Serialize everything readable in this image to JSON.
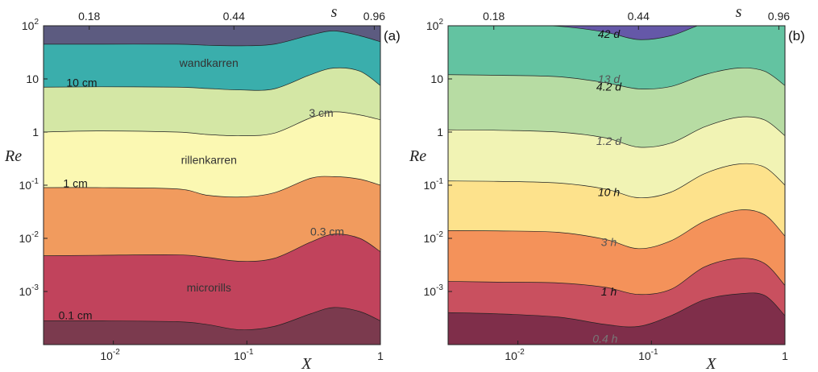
{
  "chart_data": [
    {
      "type": "area",
      "panel_label": "(a)",
      "xlabel": "X",
      "ylabel": "Re",
      "top_axis_label": "s",
      "x_scale": "log",
      "y_scale": "log",
      "xlim": [
        0.003,
        1
      ],
      "ylim": [
        0.0001,
        100
      ],
      "x_ticks": [
        {
          "value": 0.01,
          "base": "10",
          "exp": "-2"
        },
        {
          "value": 0.1,
          "base": "10",
          "exp": "-1"
        },
        {
          "value": 1,
          "base": "1",
          "exp": ""
        }
      ],
      "y_ticks": [
        {
          "value": 0.001,
          "base": "10",
          "exp": "-3"
        },
        {
          "value": 0.01,
          "base": "10",
          "exp": "-2"
        },
        {
          "value": 0.1,
          "base": "10",
          "exp": "-1"
        },
        {
          "value": 1,
          "base": "1",
          "exp": ""
        },
        {
          "value": 10,
          "base": "10",
          "exp": ""
        },
        {
          "value": 100,
          "base": "10",
          "exp": "2"
        }
      ],
      "top_ticks": [
        {
          "label": "0.18",
          "x": 0.0066
        },
        {
          "label": "0.44",
          "x": 0.08
        },
        {
          "label": "0.96",
          "x": 0.9
        }
      ],
      "x_grid": [
        0.003,
        0.0075,
        0.03,
        0.05,
        0.09,
        0.16,
        0.3,
        0.45,
        0.7,
        1.0
      ],
      "boundaries": [
        {
          "name": "0.1 cm",
          "re": [
            0.00028,
            0.00028,
            0.00027,
            0.00024,
            0.00019,
            0.00022,
            0.00038,
            0.0005,
            0.00042,
            0.00028
          ]
        },
        {
          "name": "0.3 cm",
          "re": [
            0.0047,
            0.0048,
            0.0049,
            0.0044,
            0.0037,
            0.0042,
            0.0085,
            0.012,
            0.01,
            0.0056
          ]
        },
        {
          "name": "1 cm",
          "re": [
            0.09,
            0.09,
            0.085,
            0.065,
            0.06,
            0.072,
            0.135,
            0.145,
            0.13,
            0.1
          ]
        },
        {
          "name": "3 cm",
          "re": [
            1.0,
            1.05,
            1.0,
            0.9,
            0.85,
            0.95,
            1.85,
            2.4,
            2.1,
            1.7
          ]
        },
        {
          "name": "10 cm",
          "re": [
            7.0,
            7.1,
            7.0,
            6.6,
            6.2,
            6.5,
            12,
            16,
            14,
            7.5
          ]
        },
        {
          "name": "",
          "re": [
            45,
            45,
            45,
            43,
            42,
            45,
            67,
            80,
            65,
            50
          ]
        }
      ],
      "band_colors": [
        "#7b3a4e",
        "#c1435c",
        "#f19b5e",
        "#fbf8b2",
        "#d4e7a5",
        "#3aaeac",
        "#5c5b80"
      ],
      "boundary_labels": [
        {
          "text": "0.1 cm",
          "x": 0.0052,
          "y": 0.00036,
          "color": "#1a1a1a"
        },
        {
          "text": "0.3 cm",
          "x": 0.4,
          "y": 0.0135,
          "color": "#444444"
        },
        {
          "text": "1 cm",
          "x": 0.0052,
          "y": 0.11,
          "color": "#1a1a1a"
        },
        {
          "text": "3 cm",
          "x": 0.36,
          "y": 2.3,
          "color": "#444444"
        },
        {
          "text": "10 cm",
          "x": 0.0058,
          "y": 8.6,
          "color": "#1a1a1a"
        }
      ],
      "region_labels": [
        {
          "text": "wandkarren",
          "x": 0.052,
          "y": 20,
          "color": "#333333"
        },
        {
          "text": "rillenkarren",
          "x": 0.052,
          "y": 0.3,
          "color": "#333333"
        },
        {
          "text": "microrills",
          "x": 0.052,
          "y": 0.0012,
          "color": "#333333"
        }
      ]
    },
    {
      "type": "area",
      "panel_label": "(b)",
      "xlabel": "X",
      "ylabel": "Re",
      "top_axis_label": "s",
      "x_scale": "log",
      "y_scale": "log",
      "xlim": [
        0.003,
        1
      ],
      "ylim": [
        0.0001,
        100
      ],
      "x_ticks": [
        {
          "value": 0.01,
          "base": "10",
          "exp": "-2"
        },
        {
          "value": 0.1,
          "base": "10",
          "exp": "-1"
        },
        {
          "value": 1,
          "base": "1",
          "exp": ""
        }
      ],
      "y_ticks": [
        {
          "value": 0.001,
          "base": "10",
          "exp": "-3"
        },
        {
          "value": 0.01,
          "base": "10",
          "exp": "-2"
        },
        {
          "value": 0.1,
          "base": "10",
          "exp": "-1"
        },
        {
          "value": 1,
          "base": "1",
          "exp": ""
        },
        {
          "value": 10,
          "base": "10",
          "exp": ""
        },
        {
          "value": 100,
          "base": "10",
          "exp": "2"
        }
      ],
      "top_ticks": [
        {
          "label": "0.18",
          "x": 0.0066
        },
        {
          "label": "0.44",
          "x": 0.08
        },
        {
          "label": "0.96",
          "x": 0.9
        }
      ],
      "x_grid": [
        0.003,
        0.007,
        0.02,
        0.045,
        0.08,
        0.14,
        0.25,
        0.45,
        0.7,
        1.0
      ],
      "boundaries": [
        {
          "name": "0.4 h",
          "re": [
            0.0004,
            0.00038,
            0.00033,
            0.00024,
            0.00022,
            0.00035,
            0.0007,
            0.0009,
            0.00085,
            0.00035
          ]
        },
        {
          "name": "1 h",
          "re": [
            0.00155,
            0.0015,
            0.00145,
            0.0012,
            0.00088,
            0.0011,
            0.0029,
            0.0042,
            0.0034,
            0.0013
          ]
        },
        {
          "name": "3 h",
          "re": [
            0.014,
            0.0138,
            0.013,
            0.0096,
            0.0064,
            0.009,
            0.021,
            0.034,
            0.028,
            0.011
          ]
        },
        {
          "name": "10 h",
          "re": [
            0.12,
            0.118,
            0.11,
            0.085,
            0.058,
            0.074,
            0.165,
            0.25,
            0.22,
            0.1
          ]
        },
        {
          "name": "1.2 d",
          "re": [
            1.1,
            1.08,
            1.0,
            0.78,
            0.52,
            0.62,
            1.25,
            1.9,
            1.7,
            0.85
          ]
        },
        {
          "name": "4.2 d",
          "re": [
            12,
            11.7,
            11,
            8.5,
            6.5,
            7.2,
            12,
            16,
            14,
            7.5
          ]
        },
        {
          "name": "13 d",
          "re": [
            110,
            105,
            98,
            76,
            55,
            65,
            110,
            130,
            130,
            130
          ]
        }
      ],
      "band_colors": [
        "#7f2e4a",
        "#c9505f",
        "#f4925a",
        "#fde28c",
        "#f1f3b4",
        "#b7dca3",
        "#63c3a1",
        "#3b8fc0",
        "#6558a8"
      ],
      "boundary_labels": [
        {
          "text": "0.4 h",
          "x": 0.045,
          "y": 0.00013,
          "color": "#777777"
        },
        {
          "text": "1 h",
          "x": 0.048,
          "y": 0.001,
          "color": "#111111"
        },
        {
          "text": "3 h",
          "x": 0.048,
          "y": 0.0085,
          "color": "#555555"
        },
        {
          "text": "10 h",
          "x": 0.048,
          "y": 0.074,
          "color": "#111111"
        },
        {
          "text": "1.2 d",
          "x": 0.048,
          "y": 0.68,
          "color": "#555555"
        },
        {
          "text": "4.2 d",
          "x": 0.048,
          "y": 7.2,
          "color": "#111111"
        },
        {
          "text": "13 d",
          "x": 0.048,
          "y": 10,
          "color": "#555555"
        },
        {
          "text": "42 d",
          "x": 0.048,
          "y": 70,
          "color": "#111111"
        }
      ]
    }
  ]
}
